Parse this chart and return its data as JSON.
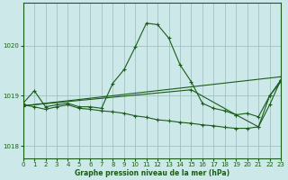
{
  "title": "Graphe pression niveau de la mer (hPa)",
  "background_color": "#cce8e8",
  "grid_color": "#99bbbb",
  "line_color": "#1a5c1a",
  "xlim": [
    0,
    23
  ],
  "ylim": [
    1017.75,
    1020.85
  ],
  "yticks": [
    1018,
    1019,
    1020
  ],
  "xticks": [
    0,
    1,
    2,
    3,
    4,
    5,
    6,
    7,
    8,
    9,
    10,
    11,
    12,
    13,
    14,
    15,
    16,
    17,
    18,
    19,
    20,
    21,
    22,
    23
  ],
  "series1_x": [
    0,
    1,
    2,
    3,
    4,
    5,
    6,
    7,
    8,
    9,
    10,
    11,
    12,
    13,
    14,
    15,
    16,
    17,
    18,
    19,
    20,
    21,
    22,
    23
  ],
  "series1_y": [
    1018.85,
    1019.1,
    1018.78,
    1018.82,
    1018.85,
    1018.78,
    1018.78,
    1018.75,
    1019.25,
    1019.52,
    1019.97,
    1020.45,
    1020.42,
    1020.15,
    1019.62,
    1019.28,
    1018.85,
    1018.75,
    1018.7,
    1018.62,
    1018.65,
    1018.58,
    1019.0,
    1019.32
  ],
  "series2_x": [
    0,
    1,
    2,
    3,
    4,
    5,
    6,
    7,
    8,
    9,
    10,
    11,
    12,
    13,
    14,
    15,
    16,
    17,
    18,
    19,
    20,
    21,
    22,
    23
  ],
  "series2_y": [
    1018.82,
    1018.78,
    1018.73,
    1018.78,
    1018.82,
    1018.75,
    1018.73,
    1018.7,
    1018.68,
    1018.65,
    1018.6,
    1018.57,
    1018.52,
    1018.5,
    1018.47,
    1018.45,
    1018.42,
    1018.4,
    1018.37,
    1018.35,
    1018.35,
    1018.38,
    1018.82,
    1019.32
  ],
  "series3_x": [
    0,
    23
  ],
  "series3_y": [
    1018.8,
    1019.38
  ],
  "series4_x": [
    0,
    15,
    19,
    21,
    22,
    23
  ],
  "series4_y": [
    1018.8,
    1019.12,
    1018.62,
    1018.38,
    1019.0,
    1019.28
  ]
}
